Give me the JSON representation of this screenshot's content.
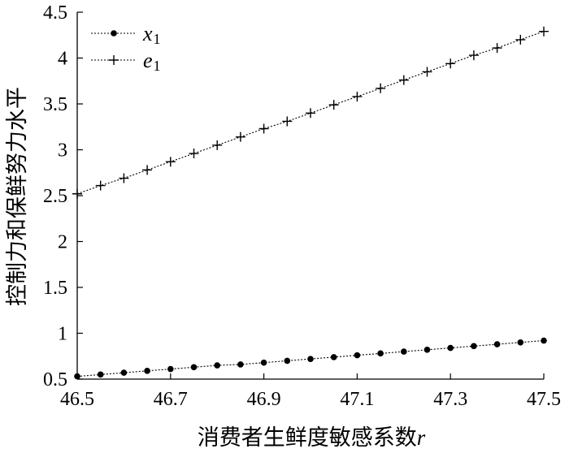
{
  "chart_data": {
    "type": "line",
    "xlabel": "消费者生鲜度敏感系数",
    "xlabel_var": "r",
    "ylabel": "控制力和保鲜努力水平",
    "xlim": [
      46.5,
      47.5
    ],
    "ylim": [
      0.5,
      4.5
    ],
    "xticks": [
      "46.5",
      "46.7",
      "46.9",
      "47.1",
      "47.3",
      "47.5"
    ],
    "yticks": [
      "0.5",
      "1",
      "1.5",
      "2",
      "2.5",
      "3",
      "3.5",
      "4",
      "4.5"
    ],
    "grid": false,
    "legend_position": "top-left",
    "series": [
      {
        "name": "x",
        "subscript": "1",
        "marker": "dot",
        "x": [
          46.5,
          46.55,
          46.6,
          46.65,
          46.7,
          46.75,
          46.8,
          46.85,
          46.9,
          46.95,
          47.0,
          47.05,
          47.1,
          47.15,
          47.2,
          47.25,
          47.3,
          47.35,
          47.4,
          47.45,
          47.5
        ],
        "values": [
          0.53,
          0.55,
          0.57,
          0.59,
          0.61,
          0.63,
          0.65,
          0.66,
          0.68,
          0.7,
          0.72,
          0.74,
          0.76,
          0.78,
          0.8,
          0.82,
          0.84,
          0.86,
          0.88,
          0.9,
          0.92
        ]
      },
      {
        "name": "e",
        "subscript": "1",
        "marker": "plus",
        "x": [
          46.5,
          46.55,
          46.6,
          46.65,
          46.7,
          46.75,
          46.8,
          46.85,
          46.9,
          46.95,
          47.0,
          47.05,
          47.1,
          47.15,
          47.2,
          47.25,
          47.3,
          47.35,
          47.4,
          47.45,
          47.5
        ],
        "values": [
          2.52,
          2.61,
          2.69,
          2.78,
          2.87,
          2.96,
          3.05,
          3.14,
          3.23,
          3.31,
          3.4,
          3.49,
          3.58,
          3.67,
          3.76,
          3.85,
          3.94,
          4.03,
          4.11,
          4.2,
          4.29
        ]
      }
    ]
  }
}
